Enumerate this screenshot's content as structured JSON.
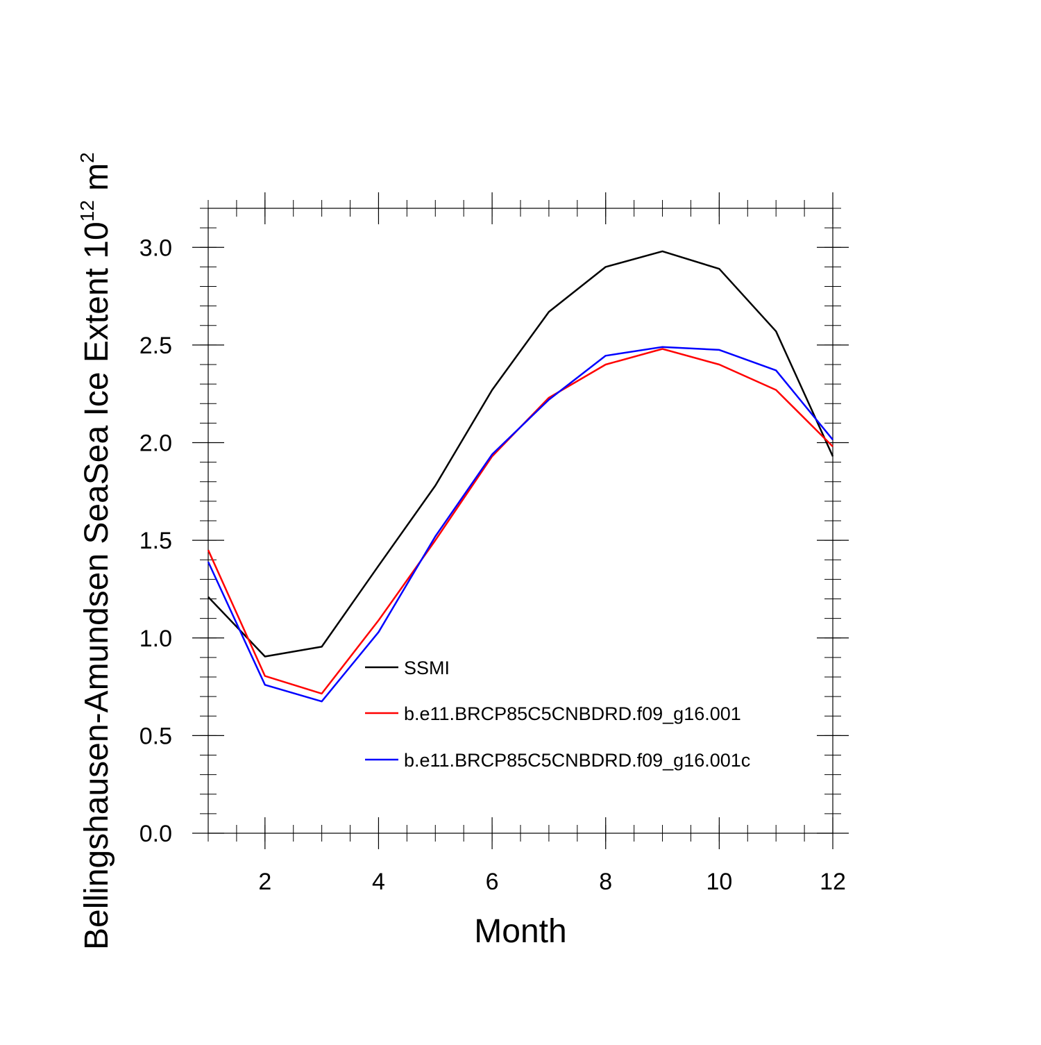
{
  "chart_data": {
    "type": "line",
    "title": "",
    "xlabel": "Month",
    "ylabel": {
      "main": "Bellingshausen-Amundsen SeaSea Ice Extent 10",
      "exponent": "12",
      "unit": " m",
      "unit_exponent": "2"
    },
    "xlim": [
      1,
      12
    ],
    "ylim": [
      0.0,
      3.2
    ],
    "x": [
      1,
      2,
      3,
      4,
      5,
      6,
      7,
      8,
      9,
      10,
      11,
      12
    ],
    "xticks": [
      2,
      4,
      6,
      8,
      10,
      12
    ],
    "xtick_labels": [
      "2",
      "4",
      "6",
      "8",
      "10",
      "12"
    ],
    "yticks": [
      0.0,
      0.5,
      1.0,
      1.5,
      2.0,
      2.5,
      3.0
    ],
    "ytick_labels": [
      "0.0",
      "0.5",
      "1.0",
      "1.5",
      "2.0",
      "2.5",
      "3.0"
    ],
    "grid": false,
    "legend_position": "inside, lower center",
    "series": [
      {
        "name": "SSMI",
        "color": "#000000",
        "values": [
          1.21,
          0.905,
          0.955,
          1.37,
          1.78,
          2.27,
          2.67,
          2.9,
          2.98,
          2.89,
          2.57,
          1.93
        ]
      },
      {
        "name": "b.e11.BRCP85C5CNBDRD.f09_g16.001",
        "color": "#ff0000",
        "values": [
          1.45,
          0.805,
          0.715,
          1.09,
          1.5,
          1.93,
          2.23,
          2.4,
          2.48,
          2.4,
          2.27,
          1.98
        ]
      },
      {
        "name": "b.e11.BRCP85C5CNBDRD.f09_g16.001c",
        "color": "#0000ff",
        "values": [
          1.39,
          0.76,
          0.675,
          1.03,
          1.52,
          1.94,
          2.22,
          2.445,
          2.49,
          2.475,
          2.37,
          2.015
        ]
      }
    ]
  }
}
